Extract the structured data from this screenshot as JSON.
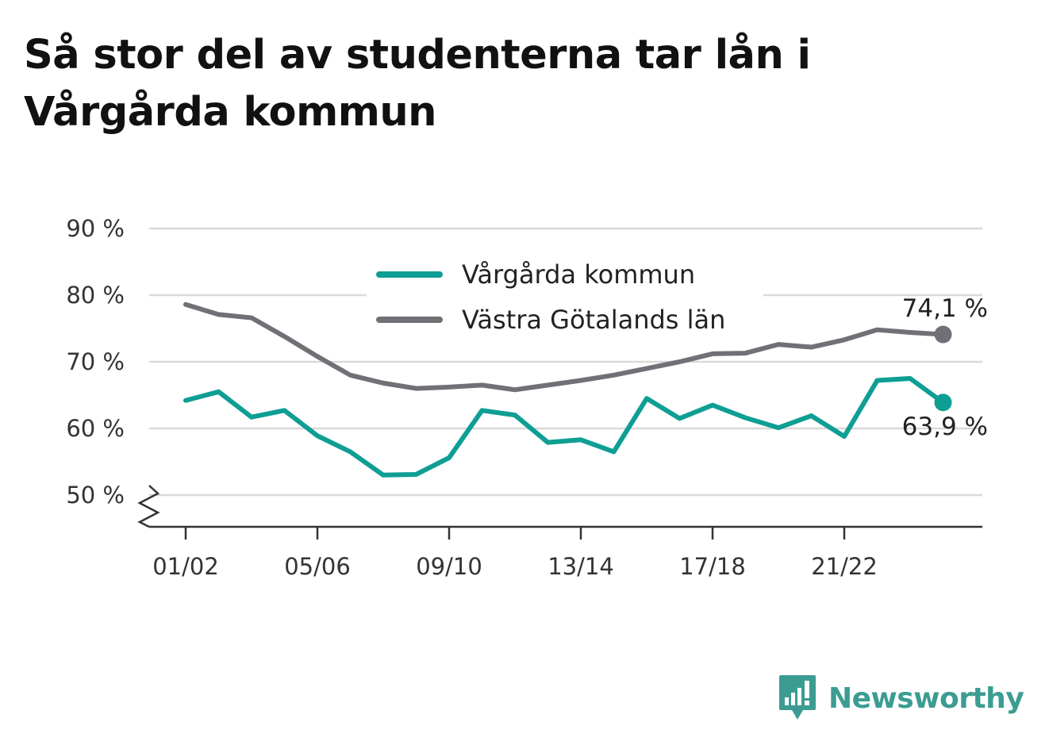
{
  "title": "Så stor del av studenterna tar lån i Vårgårda kommun",
  "brand": {
    "name": "Newsworthy",
    "color": "#3c9c92"
  },
  "chart_data": {
    "type": "line",
    "y_unit": "%",
    "ylim": [
      45,
      90
    ],
    "y_ticks": [
      50,
      60,
      70,
      80,
      90
    ],
    "y_tick_labels": [
      "50 %",
      "60 %",
      "70 %",
      "80 %",
      "90 %"
    ],
    "y_axis_break": true,
    "grid": true,
    "legend_position": "top-center",
    "x": [
      "01/02",
      "02/03",
      "03/04",
      "04/05",
      "05/06",
      "06/07",
      "07/08",
      "08/09",
      "09/10",
      "10/11",
      "11/12",
      "12/13",
      "13/14",
      "14/15",
      "15/16",
      "16/17",
      "17/18",
      "18/19",
      "19/20",
      "20/21",
      "21/22",
      "22/23",
      "23/24",
      "24/25"
    ],
    "x_tick_labels": [
      "01/02",
      "05/06",
      "09/10",
      "13/14",
      "17/18",
      "21/22"
    ],
    "series": [
      {
        "name": "Vårgårda kommun",
        "color": "#0e9e94",
        "values": [
          64.2,
          65.5,
          61.7,
          62.7,
          58.9,
          56.5,
          53.0,
          53.1,
          55.6,
          62.7,
          62.0,
          57.9,
          58.3,
          56.5,
          64.5,
          61.5,
          63.5,
          61.6,
          60.1,
          61.9,
          58.8,
          67.2,
          67.5,
          63.9
        ],
        "end_label": "63,9 %"
      },
      {
        "name": "Västra Götalands län",
        "color": "#707076",
        "values": [
          78.6,
          77.1,
          76.6,
          73.8,
          70.8,
          68.0,
          66.8,
          66.0,
          66.2,
          66.5,
          65.8,
          66.5,
          67.2,
          68.0,
          69.0,
          70.0,
          71.2,
          71.3,
          72.6,
          72.2,
          73.3,
          74.8,
          74.4,
          74.1
        ],
        "end_label": "74,1 %"
      }
    ]
  }
}
